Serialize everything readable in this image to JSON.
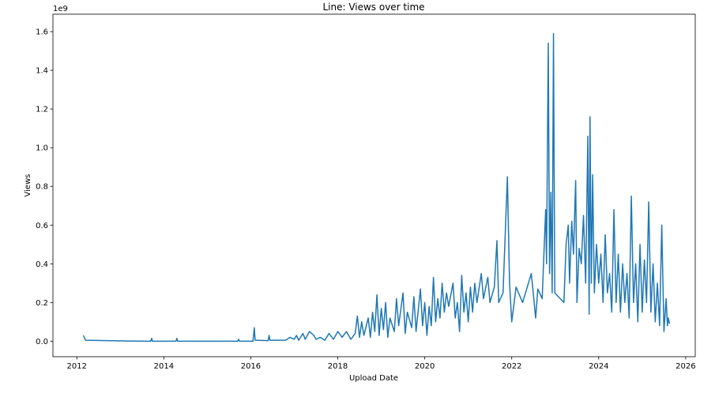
{
  "chart_data": {
    "type": "line",
    "title": "Line: Views over time",
    "x_label": "Upload Date",
    "y_label": "Views",
    "y_offset_label": "1e9",
    "xlim": [
      2011.45,
      2026.22
    ],
    "xticks": [
      2012,
      2014,
      2016,
      2018,
      2020,
      2022,
      2024,
      2026
    ],
    "ylim": [
      -0.08,
      1.69
    ],
    "yticks": [
      {
        "value": 0,
        "label": "0.0"
      },
      0.2,
      0.4,
      0.6,
      0.8,
      {
        "value": 1,
        "label": "1.0"
      },
      1.2,
      1.4,
      1.6
    ],
    "x": [
      2012.15,
      2012.2,
      2013.2,
      2013.7,
      2013.72,
      2013.74,
      2014.28,
      2014.3,
      2014.32,
      2015.7,
      2015.72,
      2015.74,
      2016.05,
      2016.08,
      2016.1,
      2016.4,
      2016.42,
      2016.44,
      2016.8,
      2016.9,
      2017.0,
      2017.05,
      2017.1,
      2017.2,
      2017.25,
      2017.35,
      2017.45,
      2017.5,
      2017.6,
      2017.7,
      2017.8,
      2017.9,
      2018.0,
      2018.1,
      2018.2,
      2018.3,
      2018.4,
      2018.45,
      2018.5,
      2018.55,
      2018.6,
      2018.7,
      2018.75,
      2018.8,
      2018.85,
      2018.9,
      2018.95,
      2019.0,
      2019.05,
      2019.1,
      2019.15,
      2019.2,
      2019.3,
      2019.35,
      2019.4,
      2019.5,
      2019.55,
      2019.6,
      2019.7,
      2019.75,
      2019.8,
      2019.9,
      2019.95,
      2020.0,
      2020.05,
      2020.1,
      2020.15,
      2020.2,
      2020.25,
      2020.3,
      2020.35,
      2020.4,
      2020.45,
      2020.5,
      2020.55,
      2020.65,
      2020.7,
      2020.75,
      2020.8,
      2020.85,
      2020.9,
      2020.95,
      2021.0,
      2021.05,
      2021.1,
      2021.15,
      2021.2,
      2021.3,
      2021.35,
      2021.45,
      2021.5,
      2021.6,
      2021.66,
      2021.7,
      2021.8,
      2021.9,
      2021.95,
      2022.0,
      2022.1,
      2022.25,
      2022.45,
      2022.55,
      2022.6,
      2022.7,
      2022.78,
      2022.8,
      2022.84,
      2022.87,
      2022.9,
      2022.93,
      2022.96,
      2022.99,
      2023.2,
      2023.25,
      2023.3,
      2023.33,
      2023.38,
      2023.42,
      2023.47,
      2023.5,
      2023.55,
      2023.6,
      2023.65,
      2023.7,
      2023.75,
      2023.78,
      2023.8,
      2023.83,
      2023.86,
      2023.9,
      2023.95,
      2024.0,
      2024.05,
      2024.1,
      2024.15,
      2024.2,
      2024.25,
      2024.3,
      2024.35,
      2024.4,
      2024.45,
      2024.5,
      2024.55,
      2024.6,
      2024.65,
      2024.7,
      2024.75,
      2024.8,
      2024.85,
      2024.9,
      2024.95,
      2025.0,
      2025.05,
      2025.1,
      2025.15,
      2025.2,
      2025.25,
      2025.3,
      2025.35,
      2025.4,
      2025.45,
      2025.5,
      2025.55,
      2025.58,
      2025.6,
      2025.63
    ],
    "series": [
      {
        "name": "Views",
        "color": "#1f77b4",
        "values": [
          0.03,
          0.005,
          0.001,
          0.0,
          0.015,
          0.0,
          0.0,
          0.015,
          0.0,
          0.0,
          0.01,
          0.0,
          0.0,
          0.07,
          0.005,
          0.003,
          0.03,
          0.005,
          0.005,
          0.02,
          0.01,
          0.03,
          0.005,
          0.04,
          0.01,
          0.05,
          0.03,
          0.01,
          0.02,
          0.005,
          0.04,
          0.01,
          0.05,
          0.02,
          0.05,
          0.01,
          0.04,
          0.13,
          0.02,
          0.1,
          0.03,
          0.12,
          0.02,
          0.15,
          0.05,
          0.24,
          0.03,
          0.17,
          0.06,
          0.2,
          0.02,
          0.12,
          0.05,
          0.22,
          0.08,
          0.25,
          0.04,
          0.15,
          0.07,
          0.23,
          0.05,
          0.27,
          0.08,
          0.2,
          0.03,
          0.18,
          0.08,
          0.33,
          0.1,
          0.22,
          0.12,
          0.3,
          0.15,
          0.25,
          0.18,
          0.3,
          0.12,
          0.2,
          0.05,
          0.34,
          0.15,
          0.25,
          0.1,
          0.28,
          0.15,
          0.3,
          0.2,
          0.35,
          0.22,
          0.33,
          0.2,
          0.28,
          0.52,
          0.2,
          0.25,
          0.85,
          0.3,
          0.1,
          0.28,
          0.2,
          0.35,
          0.12,
          0.27,
          0.22,
          0.68,
          0.4,
          1.54,
          0.35,
          0.77,
          0.25,
          1.59,
          0.25,
          0.2,
          0.5,
          0.6,
          0.3,
          0.62,
          0.45,
          0.83,
          0.2,
          0.48,
          0.4,
          0.65,
          0.3,
          1.06,
          0.14,
          1.16,
          0.3,
          0.86,
          0.25,
          0.5,
          0.3,
          0.45,
          0.2,
          0.55,
          0.25,
          0.35,
          0.15,
          0.68,
          0.2,
          0.45,
          0.15,
          0.4,
          0.2,
          0.35,
          0.12,
          0.75,
          0.2,
          0.4,
          0.1,
          0.5,
          0.15,
          0.42,
          0.2,
          0.72,
          0.15,
          0.4,
          0.1,
          0.3,
          0.08,
          0.6,
          0.05,
          0.22,
          0.08,
          0.12,
          0.09
        ]
      }
    ]
  }
}
